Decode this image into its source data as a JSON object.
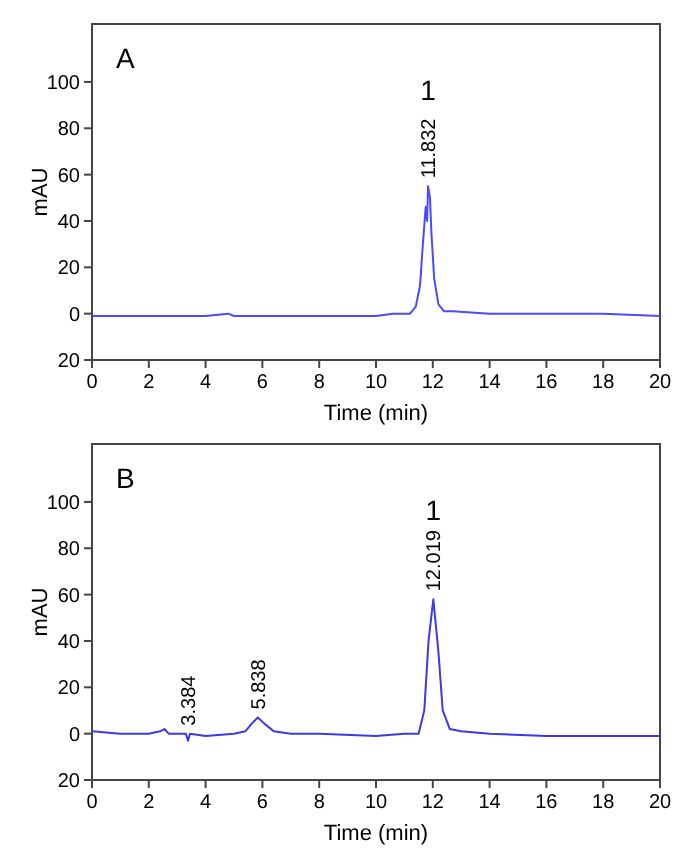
{
  "chart_data": [
    {
      "type": "line",
      "title": "A",
      "xlabel": "Time (min)",
      "ylabel": "mAU",
      "xlim": [
        0,
        20
      ],
      "xticks": [
        0,
        2,
        4,
        6,
        8,
        10,
        12,
        14,
        16,
        18,
        20
      ],
      "ylim": [
        -20,
        125
      ],
      "yticks": [
        {
          "value": -20,
          "label": "20"
        },
        0,
        20,
        40,
        60,
        80,
        100
      ],
      "grid": false,
      "series": [
        {
          "color": "#4a4aff",
          "x": [
            0,
            2,
            4,
            4.8,
            5,
            8,
            10,
            10.6,
            11.2,
            11.4,
            11.55,
            11.65,
            11.75,
            11.8,
            11.832,
            11.9,
            11.95,
            12.05,
            12.2,
            12.4,
            12.7,
            14,
            16,
            18,
            20
          ],
          "values": [
            -1,
            -1,
            -1,
            0,
            -1,
            -1,
            -1,
            0,
            0,
            3,
            12,
            30,
            46,
            40,
            55,
            50,
            35,
            15,
            4,
            1,
            1,
            0,
            0,
            0,
            -1
          ]
        }
      ],
      "annotations": [
        {
          "text": "11.832",
          "x": 11.832,
          "y": 55
        },
        "1"
      ]
    },
    {
      "type": "line",
      "title": "B",
      "xlabel": "Time (min)",
      "ylabel": "mAU",
      "xlim": [
        0,
        20
      ],
      "xticks": [
        0,
        2,
        4,
        6,
        8,
        10,
        12,
        14,
        16,
        18,
        20
      ],
      "ylim": [
        -20,
        125
      ],
      "yticks": [
        {
          "value": -20,
          "label": "20"
        },
        0,
        20,
        40,
        60,
        80,
        100
      ],
      "grid": false,
      "series": [
        {
          "color": "#3a3ae8",
          "x": [
            0,
            1,
            2,
            2.4,
            2.55,
            2.7,
            3,
            3.3,
            3.38,
            3.45,
            4,
            5,
            5.4,
            5.6,
            5.838,
            6.1,
            6.4,
            7,
            8,
            10,
            11,
            11.5,
            11.7,
            11.85,
            12.019,
            12.2,
            12.35,
            12.6,
            13,
            14,
            16,
            18,
            20
          ],
          "values": [
            1,
            0,
            0,
            1,
            2,
            0,
            0,
            0,
            -3,
            0,
            -1,
            0,
            1,
            4,
            7,
            4,
            1,
            0,
            0,
            -1,
            0,
            0,
            10,
            40,
            58,
            35,
            10,
            2,
            1,
            0,
            -1,
            -1,
            -1
          ]
        }
      ],
      "annotations": [
        {
          "text": "3.384",
          "x": 3.384,
          "y": 0
        },
        {
          "text": "5.838",
          "x": 5.838,
          "y": 7
        },
        {
          "text": "12.019",
          "x": 12.019,
          "y": 58
        },
        "1"
      ]
    }
  ]
}
